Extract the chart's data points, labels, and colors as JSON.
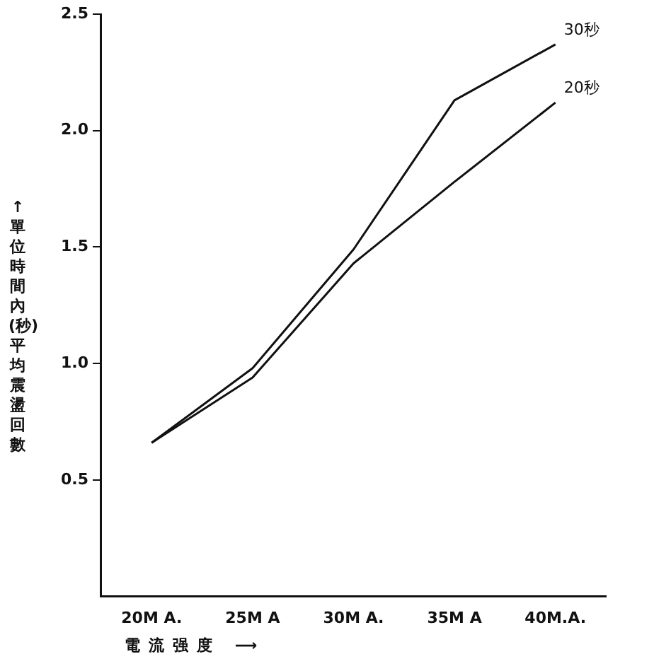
{
  "chart_data": {
    "type": "line",
    "xlabel": "電流强度 ⟶",
    "ylabel": "↑單位時間內(秒)平均震盪回數",
    "categories": [
      "20M A.",
      "25M A",
      "30M A.",
      "35M A",
      "40M.A."
    ],
    "series": [
      {
        "name": "30秒",
        "color": "#111111",
        "values": [
          0.66,
          0.98,
          1.49,
          2.13,
          2.37
        ]
      },
      {
        "name": "20秒",
        "color": "#111111",
        "values": [
          0.66,
          0.94,
          1.43,
          1.78,
          2.12
        ]
      }
    ],
    "ylim": [
      0,
      2.5
    ],
    "yticks": [
      {
        "value": 0.5,
        "label": "0.5"
      },
      {
        "value": 1,
        "label": "1.0"
      },
      {
        "value": 1.5,
        "label": "1.5"
      },
      {
        "value": 2,
        "label": "2.0"
      },
      {
        "value": 2.5,
        "label": "2.5"
      }
    ],
    "grid": false,
    "legend": false,
    "marker": "none",
    "line_style": "solid"
  }
}
